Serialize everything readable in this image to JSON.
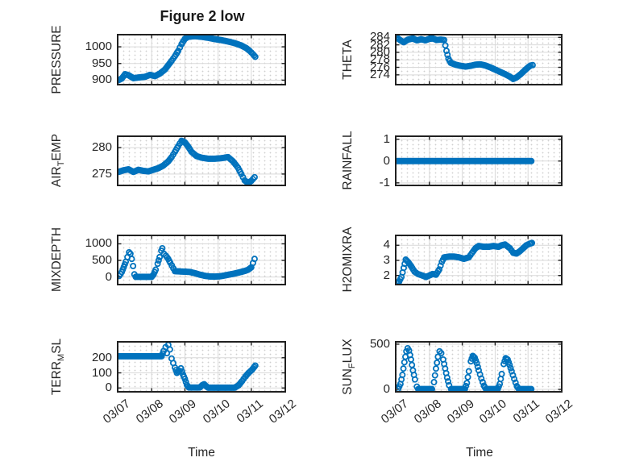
{
  "figure": {
    "title": "Figure 2 low",
    "background": "#ffffff"
  },
  "style": {
    "marker_color": "#0072bd",
    "axis_color": "#212121",
    "major_grid_color": "#d9d9d9",
    "minor_grid_color": "#cfcfcf",
    "text_color": "#262626"
  },
  "time_axis": {
    "label": "Time",
    "tick_labels": [
      "03/07",
      "03/08",
      "03/09",
      "03/10",
      "03/11",
      "03/12"
    ],
    "tick_values": [
      0,
      1,
      2,
      3,
      4,
      5
    ],
    "xlim": [
      0,
      5
    ]
  },
  "chart_data": [
    {
      "id": "pressure",
      "type": "scatter",
      "marker": "open-circle",
      "ylabel": "PRESSURE",
      "ylabel_parts": [
        {
          "text": "PRESSURE"
        }
      ],
      "ylim": [
        889,
        1034
      ],
      "yticks": [
        900,
        950,
        1000
      ],
      "grid": true,
      "minor_grid": true,
      "marker_interval_days": 0.04,
      "points": [
        [
          0,
          900
        ],
        [
          0.1,
          905
        ],
        [
          0.2,
          918
        ],
        [
          0.3,
          915
        ],
        [
          0.45,
          906
        ],
        [
          0.6,
          908
        ],
        [
          0.8,
          910
        ],
        [
          0.95,
          916
        ],
        [
          1.1,
          912
        ],
        [
          1.25,
          920
        ],
        [
          1.4,
          932
        ],
        [
          1.5,
          945
        ],
        [
          1.6,
          958
        ],
        [
          1.7,
          972
        ],
        [
          1.8,
          988
        ],
        [
          1.9,
          1008
        ],
        [
          2.0,
          1024
        ],
        [
          2.1,
          1030
        ],
        [
          2.3,
          1032
        ],
        [
          2.5,
          1030
        ],
        [
          2.7,
          1027
        ],
        [
          2.9,
          1023
        ],
        [
          3.1,
          1020
        ],
        [
          3.3,
          1016
        ],
        [
          3.5,
          1011
        ],
        [
          3.7,
          1004
        ],
        [
          3.85,
          996
        ],
        [
          3.95,
          988
        ],
        [
          4.05,
          978
        ],
        [
          4.12,
          970
        ]
      ]
    },
    {
      "id": "theta",
      "type": "scatter",
      "marker": "open-circle",
      "ylabel": "THETA",
      "ylabel_parts": [
        {
          "text": "THETA"
        }
      ],
      "ylim": [
        271.6,
        284.5
      ],
      "yticks": [
        274,
        276,
        278,
        280,
        282,
        284
      ],
      "grid": true,
      "minor_grid": true,
      "marker_interval_days": 0.04,
      "points": [
        [
          0,
          284.0
        ],
        [
          0.12,
          283.2
        ],
        [
          0.22,
          282.7
        ],
        [
          0.35,
          283.4
        ],
        [
          0.5,
          283.7
        ],
        [
          0.62,
          283.2
        ],
        [
          0.75,
          283.5
        ],
        [
          0.88,
          283.2
        ],
        [
          1.0,
          283.6
        ],
        [
          1.1,
          283.7
        ],
        [
          1.22,
          283.3
        ],
        [
          1.35,
          283.4
        ],
        [
          1.45,
          283.3
        ],
        [
          1.52,
          280.4
        ],
        [
          1.58,
          278.3
        ],
        [
          1.65,
          277.2
        ],
        [
          1.8,
          276.7
        ],
        [
          1.95,
          276.4
        ],
        [
          2.1,
          276.2
        ],
        [
          2.25,
          276.4
        ],
        [
          2.4,
          276.7
        ],
        [
          2.55,
          276.8
        ],
        [
          2.7,
          276.5
        ],
        [
          2.85,
          276.0
        ],
        [
          3.0,
          275.4
        ],
        [
          3.15,
          274.8
        ],
        [
          3.3,
          274.2
        ],
        [
          3.45,
          273.5
        ],
        [
          3.55,
          272.9
        ],
        [
          3.65,
          273.3
        ],
        [
          3.78,
          274.2
        ],
        [
          3.9,
          275.2
        ],
        [
          4.0,
          276.0
        ],
        [
          4.08,
          276.5
        ],
        [
          4.14,
          276.6
        ]
      ]
    },
    {
      "id": "airtemp",
      "type": "scatter",
      "marker": "open-circle",
      "ylabel": "AIR_TEMP",
      "ylabel_parts": [
        {
          "text": "AIR"
        },
        {
          "text": "T",
          "sub": true
        },
        {
          "text": "EMP"
        }
      ],
      "ylim": [
        273,
        282
      ],
      "yticks": [
        275,
        280
      ],
      "grid": true,
      "minor_grid": true,
      "marker_interval_days": 0.04,
      "points": [
        [
          0,
          275.4
        ],
        [
          0.15,
          275.7
        ],
        [
          0.3,
          275.9
        ],
        [
          0.45,
          275.4
        ],
        [
          0.6,
          275.8
        ],
        [
          0.75,
          275.6
        ],
        [
          0.9,
          275.5
        ],
        [
          1.05,
          275.8
        ],
        [
          1.2,
          276.1
        ],
        [
          1.35,
          276.6
        ],
        [
          1.5,
          277.4
        ],
        [
          1.6,
          278.2
        ],
        [
          1.7,
          279.2
        ],
        [
          1.8,
          280.3
        ],
        [
          1.9,
          281.3
        ],
        [
          2.0,
          281.0
        ],
        [
          2.1,
          280.2
        ],
        [
          2.2,
          279.2
        ],
        [
          2.35,
          278.4
        ],
        [
          2.5,
          278.1
        ],
        [
          2.7,
          277.9
        ],
        [
          2.9,
          277.9
        ],
        [
          3.1,
          278.0
        ],
        [
          3.3,
          278.2
        ],
        [
          3.45,
          277.4
        ],
        [
          3.6,
          276.2
        ],
        [
          3.7,
          275.0
        ],
        [
          3.8,
          273.8
        ],
        [
          3.9,
          273.3
        ],
        [
          4.0,
          273.7
        ],
        [
          4.1,
          274.4
        ]
      ]
    },
    {
      "id": "rainfall",
      "type": "scatter",
      "marker": "open-circle",
      "ylabel": "RAINFALL",
      "ylabel_parts": [
        {
          "text": "RAINFALL"
        }
      ],
      "ylim": [
        -1.08,
        1.1
      ],
      "yticks": [
        -1,
        0,
        1
      ],
      "grid": true,
      "minor_grid": true,
      "marker_interval_days": 0.04,
      "points": [
        [
          0,
          0
        ],
        [
          4.1,
          0
        ]
      ]
    },
    {
      "id": "mixdepth",
      "type": "scatter",
      "marker": "open-circle",
      "ylabel": "MIXDEPTH",
      "ylabel_parts": [
        {
          "text": "MIXDEPTH"
        }
      ],
      "ylim": [
        -205,
        1230
      ],
      "yticks": [
        0,
        500,
        1000
      ],
      "grid": true,
      "minor_grid": true,
      "marker_interval_days": 0.04,
      "points": [
        [
          0.02,
          30
        ],
        [
          0.1,
          150
        ],
        [
          0.16,
          300
        ],
        [
          0.22,
          460
        ],
        [
          0.27,
          600
        ],
        [
          0.32,
          745
        ],
        [
          0.36,
          700
        ],
        [
          0.4,
          545
        ],
        [
          0.44,
          330
        ],
        [
          0.48,
          80
        ],
        [
          0.52,
          5
        ],
        [
          0.8,
          5
        ],
        [
          1.0,
          5
        ],
        [
          1.06,
          80
        ],
        [
          1.12,
          220
        ],
        [
          1.18,
          400
        ],
        [
          1.24,
          600
        ],
        [
          1.29,
          790
        ],
        [
          1.32,
          865
        ],
        [
          1.37,
          700
        ],
        [
          1.43,
          640
        ],
        [
          1.5,
          545
        ],
        [
          1.56,
          430
        ],
        [
          1.7,
          175
        ],
        [
          1.85,
          165
        ],
        [
          2.0,
          160
        ],
        [
          2.15,
          150
        ],
        [
          2.3,
          115
        ],
        [
          2.45,
          70
        ],
        [
          2.6,
          35
        ],
        [
          2.75,
          15
        ],
        [
          2.9,
          12
        ],
        [
          3.05,
          20
        ],
        [
          3.2,
          45
        ],
        [
          3.35,
          75
        ],
        [
          3.5,
          105
        ],
        [
          3.65,
          140
        ],
        [
          3.8,
          180
        ],
        [
          3.9,
          215
        ],
        [
          4.0,
          290
        ],
        [
          4.05,
          420
        ],
        [
          4.1,
          545
        ]
      ]
    },
    {
      "id": "h2omixra",
      "type": "scatter",
      "marker": "open-circle",
      "ylabel": "H2OMIXRA",
      "ylabel_parts": [
        {
          "text": "H2OMIXRA"
        }
      ],
      "ylim": [
        1.45,
        4.6
      ],
      "yticks": [
        2,
        3,
        4
      ],
      "grid": true,
      "minor_grid": true,
      "marker_interval_days": 0.04,
      "points": [
        [
          0,
          1.5
        ],
        [
          0.08,
          1.6
        ],
        [
          0.15,
          1.9
        ],
        [
          0.22,
          2.5
        ],
        [
          0.28,
          3.05
        ],
        [
          0.35,
          2.9
        ],
        [
          0.45,
          2.6
        ],
        [
          0.55,
          2.25
        ],
        [
          0.65,
          2.1
        ],
        [
          0.78,
          2.0
        ],
        [
          0.9,
          1.9
        ],
        [
          1.0,
          2.0
        ],
        [
          1.1,
          2.1
        ],
        [
          1.2,
          2.05
        ],
        [
          1.3,
          2.4
        ],
        [
          1.38,
          2.9
        ],
        [
          1.45,
          3.2
        ],
        [
          1.6,
          3.25
        ],
        [
          1.75,
          3.25
        ],
        [
          1.9,
          3.2
        ],
        [
          2.05,
          3.1
        ],
        [
          2.2,
          3.2
        ],
        [
          2.3,
          3.5
        ],
        [
          2.4,
          3.8
        ],
        [
          2.5,
          3.95
        ],
        [
          2.65,
          3.9
        ],
        [
          2.8,
          3.9
        ],
        [
          2.95,
          3.95
        ],
        [
          3.1,
          3.9
        ],
        [
          3.2,
          4.0
        ],
        [
          3.3,
          4.05
        ],
        [
          3.45,
          3.8
        ],
        [
          3.55,
          3.5
        ],
        [
          3.65,
          3.45
        ],
        [
          3.75,
          3.6
        ],
        [
          3.85,
          3.8
        ],
        [
          3.95,
          4.0
        ],
        [
          4.05,
          4.1
        ],
        [
          4.12,
          4.15
        ]
      ]
    },
    {
      "id": "terrmsl",
      "type": "scatter",
      "marker": "open-circle",
      "ylabel": "TERR_MSL",
      "ylabel_parts": [
        {
          "text": "TERR"
        },
        {
          "text": "M",
          "sub": true
        },
        {
          "text": "SL"
        }
      ],
      "ylim": [
        -20,
        300
      ],
      "yticks": [
        0,
        100,
        200
      ],
      "grid": true,
      "minor_grid": true,
      "marker_interval_days": 0.04,
      "points": [
        [
          0,
          210
        ],
        [
          1.3,
          210
        ],
        [
          1.36,
          245
        ],
        [
          1.42,
          270
        ],
        [
          1.46,
          230
        ],
        [
          1.5,
          285
        ],
        [
          1.55,
          255
        ],
        [
          1.6,
          195
        ],
        [
          1.65,
          165
        ],
        [
          1.7,
          135
        ],
        [
          1.76,
          100
        ],
        [
          1.82,
          115
        ],
        [
          1.88,
          130
        ],
        [
          1.94,
          90
        ],
        [
          2.0,
          60
        ],
        [
          2.06,
          20
        ],
        [
          2.12,
          3
        ],
        [
          2.45,
          3
        ],
        [
          2.52,
          18
        ],
        [
          2.58,
          25
        ],
        [
          2.64,
          12
        ],
        [
          2.7,
          2
        ],
        [
          3.5,
          2
        ],
        [
          3.62,
          18
        ],
        [
          3.72,
          45
        ],
        [
          3.82,
          75
        ],
        [
          3.92,
          100
        ],
        [
          4.02,
          120
        ],
        [
          4.12,
          148
        ]
      ]
    },
    {
      "id": "sunflux",
      "type": "scatter",
      "marker": "open-circle",
      "ylabel": "SUN_FLUX",
      "ylabel_parts": [
        {
          "text": "SUN"
        },
        {
          "text": "F",
          "sub": true
        },
        {
          "text": "LUX"
        }
      ],
      "ylim": [
        -18,
        517
      ],
      "yticks": [
        0,
        500
      ],
      "grid": true,
      "minor_grid": true,
      "marker_interval_days": 0.04,
      "points": [
        [
          0.05,
          5
        ],
        [
          0.12,
          60
        ],
        [
          0.18,
          160
        ],
        [
          0.24,
          300
        ],
        [
          0.3,
          420
        ],
        [
          0.34,
          455
        ],
        [
          0.38,
          430
        ],
        [
          0.44,
          330
        ],
        [
          0.5,
          210
        ],
        [
          0.56,
          110
        ],
        [
          0.62,
          30
        ],
        [
          0.66,
          3
        ],
        [
          1.08,
          3
        ],
        [
          1.14,
          80
        ],
        [
          1.2,
          230
        ],
        [
          1.26,
          360
        ],
        [
          1.31,
          420
        ],
        [
          1.36,
          400
        ],
        [
          1.42,
          330
        ],
        [
          1.48,
          230
        ],
        [
          1.54,
          130
        ],
        [
          1.6,
          45
        ],
        [
          1.66,
          3
        ],
        [
          2.08,
          3
        ],
        [
          2.14,
          70
        ],
        [
          2.2,
          200
        ],
        [
          2.26,
          310
        ],
        [
          2.32,
          370
        ],
        [
          2.38,
          350
        ],
        [
          2.44,
          290
        ],
        [
          2.5,
          210
        ],
        [
          2.58,
          120
        ],
        [
          2.66,
          40
        ],
        [
          2.72,
          3
        ],
        [
          3.08,
          3
        ],
        [
          3.14,
          60
        ],
        [
          3.2,
          170
        ],
        [
          3.26,
          280
        ],
        [
          3.32,
          345
        ],
        [
          3.38,
          330
        ],
        [
          3.44,
          270
        ],
        [
          3.5,
          200
        ],
        [
          3.58,
          115
        ],
        [
          3.66,
          35
        ],
        [
          3.72,
          3
        ],
        [
          4.1,
          3
        ]
      ]
    }
  ]
}
